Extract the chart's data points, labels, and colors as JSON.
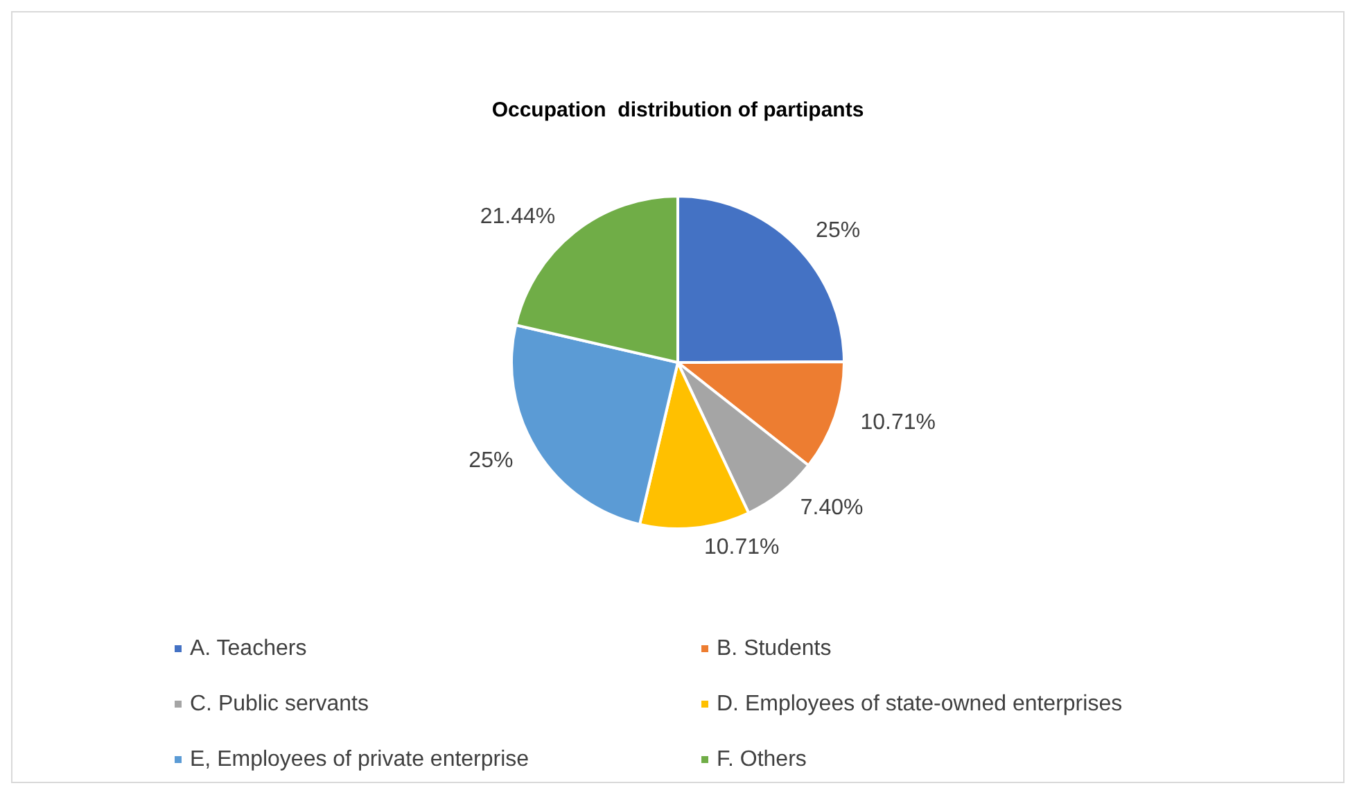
{
  "chart_data": {
    "type": "pie",
    "title": "Occupation  distribution of partipants",
    "categories": [
      "A. Teachers",
      "B. Students",
      "C. Public servants",
      "D. Employees of state-owned enterprises",
      "E, Employees of private enterprise",
      "F. Others"
    ],
    "values": [
      25,
      10.71,
      7.4,
      10.71,
      25,
      21.44
    ],
    "value_labels": [
      "25%",
      "10.71%",
      "7.40%",
      "10.71%",
      "25%",
      "21.44%"
    ],
    "colors": [
      "#4472c4",
      "#ed7d31",
      "#a5a5a5",
      "#ffc000",
      "#5b9bd5",
      "#70ad47"
    ],
    "legend": "bottom"
  }
}
